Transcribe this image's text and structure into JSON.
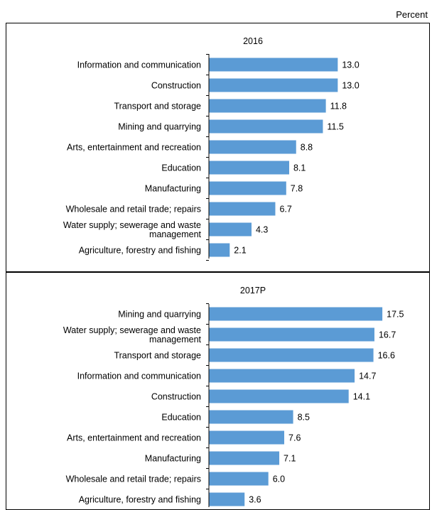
{
  "unit_label": "Percent",
  "colors": {
    "bar": "#5b9bd5",
    "border": "#000000",
    "axis": "#000000"
  },
  "chart_data": [
    {
      "type": "bar",
      "orientation": "horizontal",
      "title": "2016",
      "categories": [
        "Information and communication",
        "Construction",
        "Transport and storage",
        "Mining and quarrying",
        "Arts, entertainment and recreation",
        "Education",
        "Manufacturing",
        "Wholesale and retail trade; repairs",
        "Water supply; sewerage and waste management",
        "Agriculture, forestry and fishing"
      ],
      "category_lines": [
        [
          "Information and communication"
        ],
        [
          "Construction"
        ],
        [
          "Transport and storage"
        ],
        [
          "Mining and quarrying"
        ],
        [
          "Arts, entertainment and recreation"
        ],
        [
          "Education"
        ],
        [
          "Manufacturing"
        ],
        [
          "Wholesale and retail trade; repairs"
        ],
        [
          "Water supply; sewerage and waste",
          "management"
        ],
        [
          "Agriculture, forestry and fishing"
        ]
      ],
      "values": [
        13.0,
        13.0,
        11.8,
        11.5,
        8.8,
        8.1,
        7.8,
        6.7,
        4.3,
        2.1
      ],
      "value_labels": [
        "13.0",
        "13.0",
        "11.8",
        "11.5",
        "8.8",
        "8.1",
        "7.8",
        "6.7",
        "4.3",
        "2.1"
      ],
      "xlim": [
        0,
        20
      ],
      "grid": false
    },
    {
      "type": "bar",
      "orientation": "horizontal",
      "title": "2017P",
      "categories": [
        "Mining and quarrying",
        "Water supply; sewerage and waste management",
        "Transport and storage",
        "Information and communication",
        "Construction",
        "Education",
        "Arts, entertainment and recreation",
        "Manufacturing",
        "Wholesale and retail trade; repairs",
        "Agriculture, forestry and fishing"
      ],
      "category_lines": [
        [
          "Mining and quarrying"
        ],
        [
          "Water supply; sewerage and waste",
          "management"
        ],
        [
          "Transport and storage"
        ],
        [
          "Information and communication"
        ],
        [
          "Construction"
        ],
        [
          "Education"
        ],
        [
          "Arts, entertainment and recreation"
        ],
        [
          "Manufacturing"
        ],
        [
          "Wholesale and retail trade; repairs"
        ],
        [
          "Agriculture, forestry and fishing"
        ]
      ],
      "values": [
        17.5,
        16.7,
        16.6,
        14.7,
        14.1,
        8.5,
        7.6,
        7.1,
        6.0,
        3.6
      ],
      "value_labels": [
        "17.5",
        "16.7",
        "16.6",
        "14.7",
        "14.1",
        "8.5",
        "7.6",
        "7.1",
        "6.0",
        "3.6"
      ],
      "xlim": [
        0,
        20
      ],
      "grid": false
    }
  ]
}
